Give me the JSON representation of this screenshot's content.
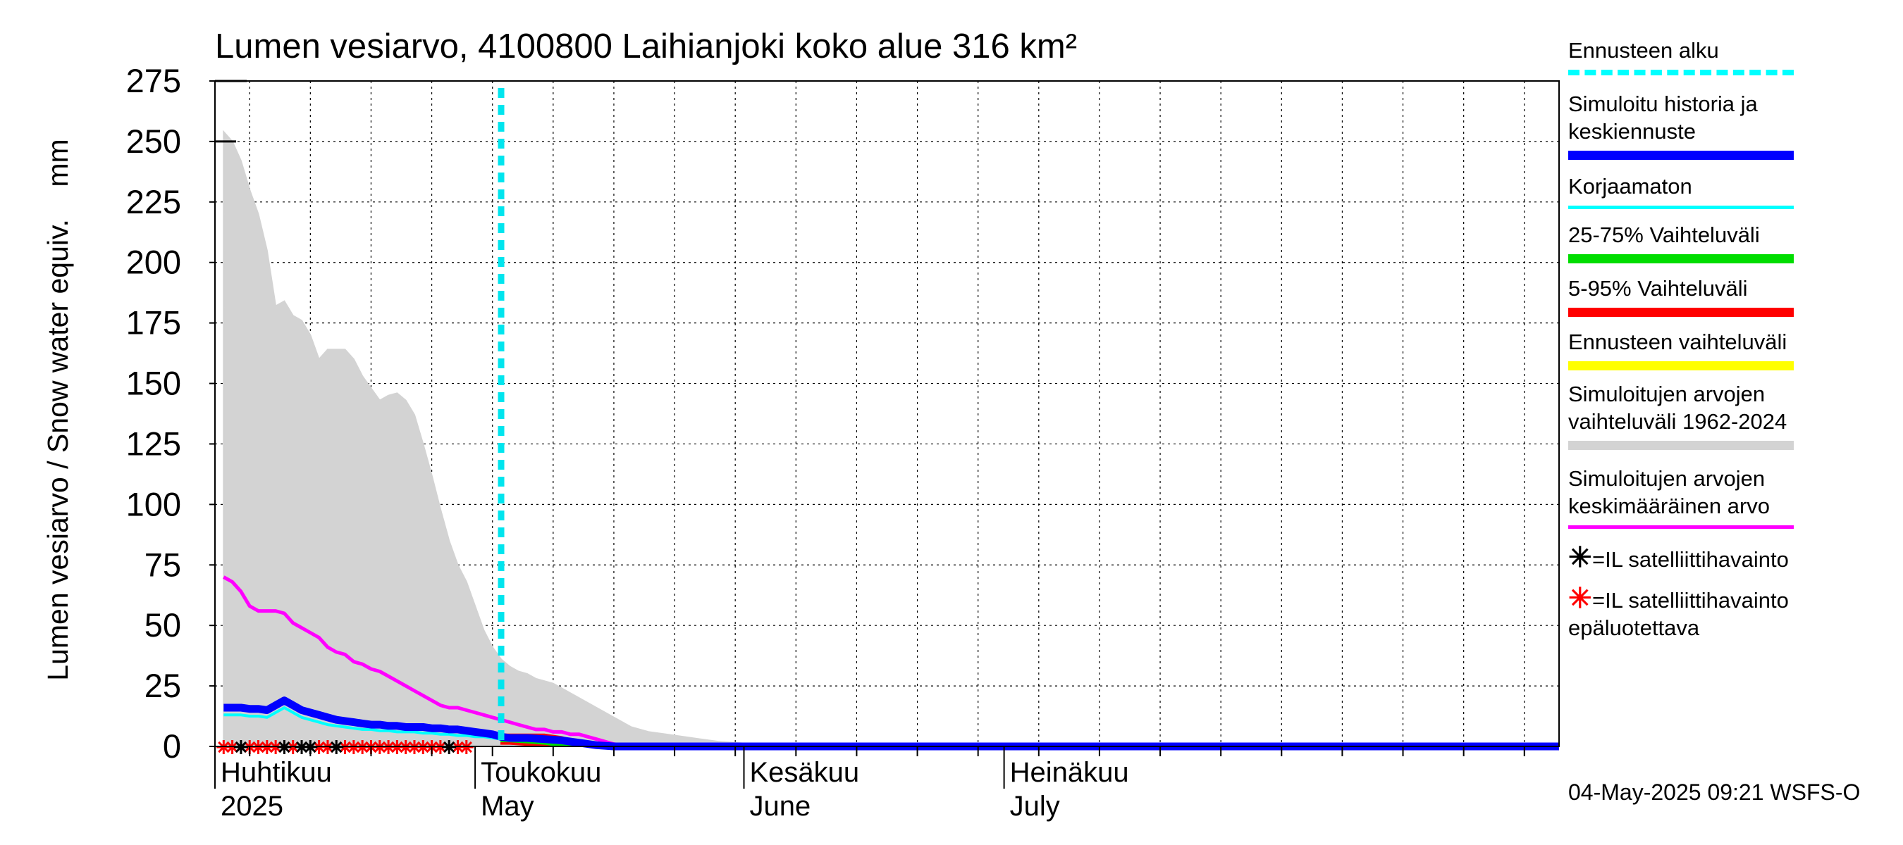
{
  "chart_data": {
    "type": "area",
    "title": "Lumen vesiarvo, 4100800 Laihianjoki koko alue 316 km²",
    "ylabel": "Lumen vesiarvo / Snow water equiv.    mm",
    "ylim": [
      0,
      275
    ],
    "y_ticks": [
      "0",
      "25",
      "50",
      "75",
      "100",
      "125",
      "150",
      "175",
      "200",
      "225",
      "250",
      "275"
    ],
    "x_range_days": [
      91,
      245
    ],
    "month_labels": [
      {
        "top": "Huhtikuu",
        "bottom": "2025",
        "day": 91
      },
      {
        "top": "Toukokuu",
        "bottom": "May",
        "day": 121
      },
      {
        "top": "Kesäkuu",
        "bottom": "June",
        "day": 152
      },
      {
        "top": "Heinäkuu",
        "bottom": "July",
        "day": 182
      }
    ],
    "forecast_start_day": 123,
    "grid": true,
    "series": [
      {
        "name": "Simuloitujen arvojen vaihteluväli 1962-2024",
        "kind": "band",
        "color": "#d3d3d3",
        "x": [
          91,
          92,
          93,
          94,
          95,
          96,
          97,
          98,
          99,
          100,
          101,
          102,
          103,
          104,
          105,
          106,
          107,
          108,
          109,
          110,
          111,
          112,
          113,
          114,
          115,
          116,
          117,
          118,
          119,
          120,
          121,
          122,
          123,
          124,
          125,
          126,
          127,
          128,
          129,
          130,
          131,
          132,
          133,
          134,
          135,
          136,
          137,
          138,
          140,
          142,
          144,
          146,
          148,
          150,
          152,
          154,
          156,
          158,
          160,
          162,
          164,
          170,
          180,
          200,
          245
        ],
        "upper": [
          254,
          250,
          242,
          230,
          220,
          205,
          182,
          184,
          178,
          176,
          170,
          160,
          164,
          164,
          164,
          160,
          153,
          148,
          143,
          145,
          146,
          143,
          137,
          125,
          112,
          98,
          85,
          75,
          68,
          58,
          48,
          41,
          36,
          33,
          31,
          30,
          28,
          27,
          26,
          24,
          22,
          20,
          18,
          16,
          14,
          12,
          10,
          8,
          6,
          5,
          4,
          3,
          2,
          1.5,
          1,
          0.5,
          0.3,
          0.2,
          0.1,
          0.05,
          0.02,
          0,
          0,
          0,
          0
        ],
        "lower": [
          0,
          0,
          0,
          0,
          0,
          0,
          0,
          0,
          0,
          0,
          0,
          0,
          0,
          0,
          0,
          0,
          0,
          0,
          0,
          0,
          0,
          0,
          0,
          0,
          0,
          0,
          0,
          0,
          0,
          0,
          0,
          0,
          0,
          0,
          0,
          0,
          0,
          0,
          0,
          0,
          0,
          0,
          0,
          0,
          0,
          0,
          0,
          0,
          0,
          0,
          0,
          0,
          0,
          0,
          0,
          0,
          0,
          0,
          0,
          0,
          0,
          0,
          0,
          0,
          0
        ]
      },
      {
        "name": "Simuloitujen arvojen keskimääräinen arvo",
        "kind": "line",
        "color": "#ff00ff",
        "x": [
          91,
          92,
          93,
          94,
          95,
          96,
          97,
          98,
          99,
          100,
          101,
          102,
          103,
          104,
          105,
          106,
          107,
          108,
          109,
          110,
          111,
          112,
          113,
          114,
          115,
          116,
          117,
          118,
          119,
          120,
          121,
          122,
          123,
          124,
          125,
          126,
          127,
          128,
          129,
          130,
          131,
          132,
          133,
          134,
          135,
          136,
          137,
          138,
          140,
          145,
          245
        ],
        "y": [
          70,
          68,
          64,
          58,
          56,
          56,
          56,
          55,
          51,
          49,
          47,
          45,
          41,
          39,
          38,
          35,
          34,
          32,
          31,
          29,
          27,
          25,
          23,
          21,
          19,
          17,
          16,
          16,
          15,
          14,
          13,
          12,
          11,
          10,
          9,
          8,
          7,
          7,
          6,
          6,
          5,
          5,
          4,
          3,
          2,
          1,
          0.5,
          0.3,
          0.1,
          0,
          0
        ]
      },
      {
        "name": "5-95% Vaihteluväli",
        "kind": "band",
        "color": "#ff0000",
        "x": [
          123,
          124,
          126,
          128,
          130,
          132,
          133,
          134,
          245
        ],
        "upper": [
          5,
          5,
          5,
          5,
          4,
          2,
          1,
          0.5,
          0
        ],
        "lower": [
          1,
          1,
          0.5,
          0,
          0,
          0,
          0,
          0,
          0
        ]
      },
      {
        "name": "25-75% Vaihteluväli",
        "kind": "band",
        "color": "#00dd00",
        "x": [
          123,
          124,
          126,
          128,
          130,
          132,
          133,
          245
        ],
        "upper": [
          4,
          4,
          4,
          3,
          2,
          1,
          0,
          0
        ],
        "lower": [
          2,
          2,
          1.5,
          1,
          0,
          0,
          0,
          0
        ]
      },
      {
        "name": "Korjaamaton",
        "kind": "line",
        "color": "#00ffff",
        "x": [
          91,
          92,
          93,
          94,
          95,
          96,
          97,
          98,
          99,
          100,
          101,
          102,
          103,
          104,
          105,
          106,
          107,
          108,
          109,
          110,
          111,
          112,
          113,
          114,
          115,
          116,
          117,
          118,
          119,
          120,
          121,
          122,
          123,
          124,
          126,
          128,
          130,
          132,
          133,
          134,
          136,
          245
        ],
        "y": [
          13,
          13,
          13,
          12.5,
          12.5,
          12,
          14,
          16,
          14,
          12,
          11,
          10,
          9,
          8.5,
          8,
          7.5,
          7,
          7,
          6.5,
          6.5,
          6,
          6,
          6,
          5.5,
          5.5,
          5,
          5,
          4.5,
          4.5,
          4,
          4,
          3.5,
          3,
          3,
          3,
          2.5,
          2,
          1,
          0.5,
          0.3,
          0,
          0
        ]
      },
      {
        "name": "Simuloitu historia ja keskiennuste",
        "kind": "line",
        "color": "#0000ff",
        "x": [
          91,
          92,
          93,
          94,
          95,
          96,
          97,
          98,
          99,
          100,
          101,
          102,
          103,
          104,
          105,
          106,
          107,
          108,
          109,
          110,
          111,
          112,
          113,
          114,
          115,
          116,
          117,
          118,
          119,
          120,
          121,
          122,
          123,
          124,
          126,
          128,
          130,
          132,
          133,
          134,
          136,
          245
        ],
        "y": [
          16,
          16,
          16,
          15.5,
          15.5,
          15,
          17,
          19,
          17,
          15,
          14,
          13,
          12,
          11,
          10.5,
          10,
          9.5,
          9,
          9,
          8.5,
          8.5,
          8,
          8,
          8,
          7.5,
          7.5,
          7,
          7,
          6.5,
          6,
          5.5,
          5,
          4,
          3.5,
          3.5,
          3,
          2.5,
          1.5,
          1,
          0.5,
          0,
          0
        ]
      }
    ],
    "satellite_obs": {
      "reliable_days": [
        93,
        98,
        100,
        101,
        104,
        117
      ],
      "unreliable_days": [
        91,
        92,
        94,
        95,
        96,
        97,
        99,
        102,
        103,
        105,
        106,
        107,
        108,
        109,
        110,
        111,
        112,
        113,
        114,
        115,
        116,
        118,
        119
      ]
    }
  },
  "legend": {
    "items": [
      {
        "label": "Ennusteen alku",
        "color": "#00ffff",
        "style": "dashed"
      },
      {
        "label": "Simuloitu historia ja\nkeskiennuste",
        "color": "#0000ff",
        "style": "thick"
      },
      {
        "label": "Korjaamaton",
        "color": "#00ffff",
        "style": "thin"
      },
      {
        "label": "25-75% Vaihteluväli",
        "color": "#00dd00",
        "style": "thick"
      },
      {
        "label": "5-95% Vaihteluväli",
        "color": "#ff0000",
        "style": "thick"
      },
      {
        "label": "Ennusteen vaihteluväli",
        "color": "#ffff00",
        "style": "thick"
      },
      {
        "label": "Simuloitujen arvojen\nvaihteluväli 1962-2024",
        "color": "#d3d3d3",
        "style": "thick"
      },
      {
        "label": "Simuloitujen arvojen\nkeskimääräinen arvo",
        "color": "#ff00ff",
        "style": "thin"
      }
    ],
    "marker_black": {
      "symbol": "✳",
      "label": "=IL satelliittihavainto",
      "color": "#000000"
    },
    "marker_red": {
      "symbol": "✳",
      "label": "=IL satelliittihavainto\nepäluotettava",
      "color": "#ff0000"
    }
  },
  "timestamp": "04-May-2025 09:21 WSFS-O"
}
